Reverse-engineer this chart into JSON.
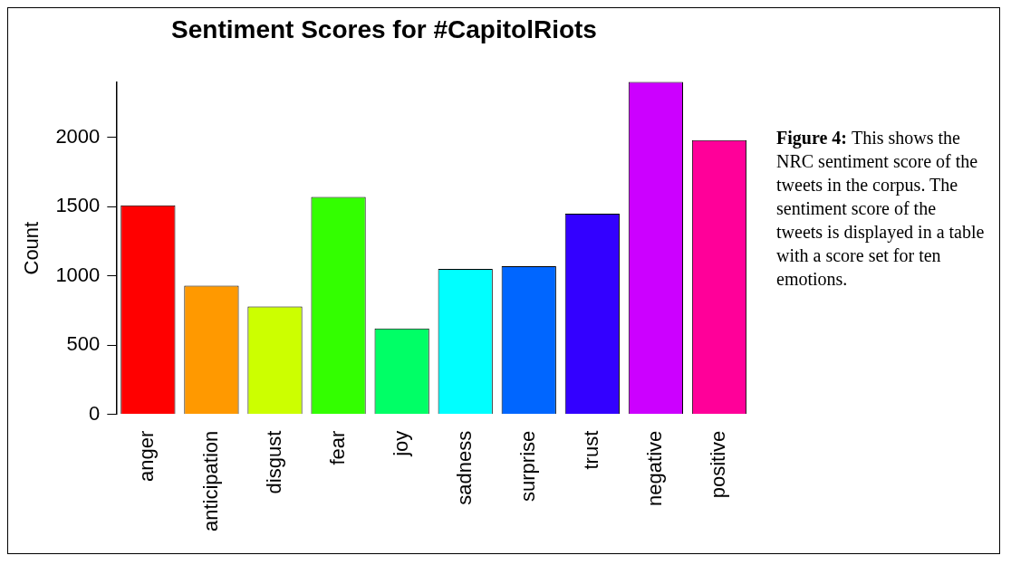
{
  "chart_data": {
    "type": "bar",
    "title": "Sentiment Scores for #CapitolRiots",
    "ylabel": "Count",
    "categories": [
      "anger",
      "anticipation",
      "disgust",
      "fear",
      "joy",
      "sadness",
      "surprise",
      "trust",
      "negative",
      "positive"
    ],
    "values": [
      1510,
      930,
      780,
      1570,
      620,
      1050,
      1070,
      1450,
      2400,
      1980
    ],
    "colors": [
      "#ff0000",
      "#ff9900",
      "#ccff00",
      "#33ff00",
      "#00ff66",
      "#00ffff",
      "#0066ff",
      "#3300ff",
      "#cc00ff",
      "#ff0099"
    ],
    "ylim": [
      0,
      2400
    ],
    "yticks": [
      0,
      500,
      1000,
      1500,
      2000
    ],
    "grid": false,
    "legend": false,
    "annotations": [
      "Figure 4:",
      "This shows the NRC sentiment score of the tweets in the corpus. The sentiment score of the tweets is displayed in a table with a score set for ten emotions."
    ]
  }
}
